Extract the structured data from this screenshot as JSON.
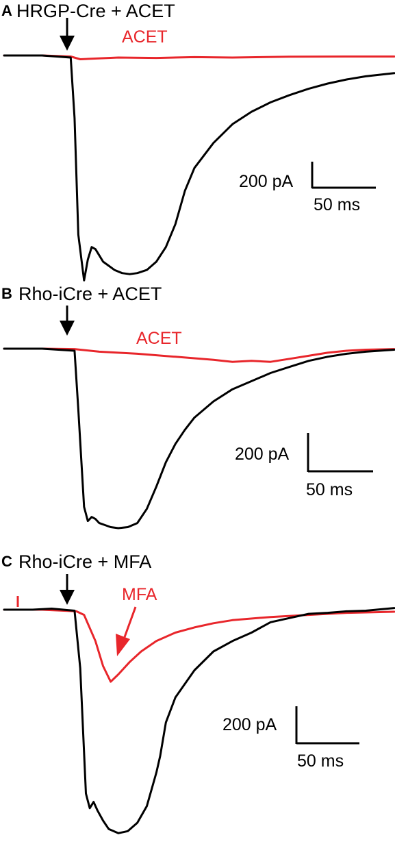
{
  "colors": {
    "control": "#000000",
    "drug": "#e8262b"
  },
  "chart_data": [
    {
      "type": "line",
      "panel": "A",
      "title": "HRGP-Cre + ACET",
      "trace_label": "ACET",
      "scale_current": "200 pA",
      "scale_time": "50 ms",
      "stimulus_arrow": true,
      "x_unit": "ms",
      "y_unit": "pA",
      "series": [
        {
          "role": "control",
          "color": "#000000",
          "x": [
            0,
            20,
            35,
            37,
            39,
            42,
            44,
            46,
            48,
            50,
            52,
            55,
            58,
            62,
            66,
            70,
            75,
            80,
            85,
            90,
            95,
            100,
            110,
            120,
            130,
            140,
            150,
            160,
            170,
            180,
            190,
            205
          ],
          "y": [
            0,
            0,
            -10,
            -300,
            -860,
            -1080,
            -980,
            -920,
            -930,
            -960,
            -990,
            -1010,
            -1030,
            -1045,
            -1050,
            -1045,
            -1030,
            -990,
            -920,
            -810,
            -650,
            -540,
            -420,
            -330,
            -270,
            -225,
            -190,
            -160,
            -135,
            -115,
            -100,
            -85
          ]
        },
        {
          "role": "drug",
          "label": "ACET",
          "color": "#e8262b",
          "x": [
            0,
            20,
            35,
            40,
            60,
            80,
            100,
            120,
            150,
            180,
            205
          ],
          "y": [
            0,
            0,
            -5,
            -18,
            -10,
            -12,
            -8,
            -10,
            -6,
            -5,
            -5
          ]
        }
      ]
    },
    {
      "type": "line",
      "panel": "B",
      "title": "Rho-iCre + ACET",
      "trace_label": "ACET",
      "scale_current": "200 pA",
      "scale_time": "50 ms",
      "stimulus_arrow": true,
      "x_unit": "ms",
      "y_unit": "pA",
      "series": [
        {
          "role": "control",
          "color": "#000000",
          "x": [
            0,
            20,
            37,
            39,
            42,
            44,
            46,
            48,
            50,
            53,
            56,
            60,
            65,
            70,
            75,
            80,
            85,
            90,
            95,
            100,
            110,
            120,
            130,
            140,
            150,
            160,
            170,
            180,
            190,
            205
          ],
          "y": [
            0,
            0,
            -10,
            -300,
            -780,
            -850,
            -830,
            -840,
            -860,
            -870,
            -880,
            -885,
            -880,
            -860,
            -790,
            -680,
            -560,
            -470,
            -400,
            -340,
            -260,
            -200,
            -160,
            -120,
            -90,
            -60,
            -40,
            -25,
            -15,
            -5
          ]
        },
        {
          "role": "drug",
          "label": "ACET",
          "color": "#e8262b",
          "x": [
            0,
            20,
            37,
            50,
            70,
            90,
            110,
            120,
            130,
            140,
            150,
            160,
            170,
            180,
            190,
            205
          ],
          "y": [
            0,
            0,
            -2,
            -15,
            -25,
            -40,
            -55,
            -65,
            -60,
            -65,
            -50,
            -35,
            -20,
            -10,
            -5,
            -2
          ]
        }
      ]
    },
    {
      "type": "line",
      "panel": "C",
      "title": "Rho-iCre + MFA",
      "trace_label": "MFA",
      "scale_current": "200 pA",
      "scale_time": "50 ms",
      "stimulus_arrow": true,
      "x_unit": "ms",
      "y_unit": "pA",
      "series": [
        {
          "role": "control",
          "color": "#000000",
          "x": [
            0,
            15,
            25,
            37,
            40,
            43,
            45,
            47,
            49,
            52,
            55,
            60,
            65,
            70,
            75,
            80,
            82,
            85,
            90,
            100,
            110,
            120,
            130,
            140,
            150,
            160,
            170,
            180,
            190,
            205
          ],
          "y": [
            0,
            0,
            5,
            -5,
            -280,
            -880,
            -950,
            -920,
            -960,
            -1010,
            -1050,
            -1070,
            -1060,
            -1020,
            -940,
            -780,
            -700,
            -540,
            -420,
            -290,
            -200,
            -150,
            -110,
            -60,
            -40,
            -20,
            -15,
            -8,
            -5,
            8
          ]
        },
        {
          "role": "drug",
          "label": "MFA",
          "color": "#e8262b",
          "x": [
            0,
            20,
            38,
            42,
            48,
            52,
            56,
            60,
            66,
            72,
            80,
            90,
            100,
            110,
            120,
            140,
            160,
            180,
            205
          ],
          "y": [
            0,
            0,
            -8,
            -25,
            -150,
            -270,
            -345,
            -310,
            -250,
            -200,
            -150,
            -110,
            -85,
            -65,
            -50,
            -35,
            -25,
            -15,
            -10
          ]
        }
      ]
    }
  ]
}
